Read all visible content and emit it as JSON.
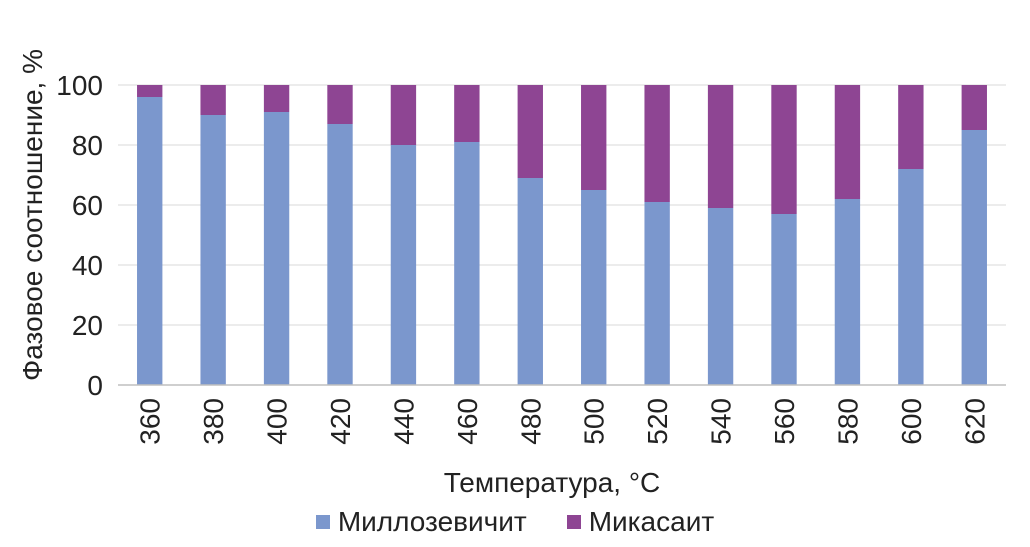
{
  "chart_data": {
    "type": "bar",
    "stacked": true,
    "categories": [
      "360",
      "380",
      "400",
      "420",
      "440",
      "460",
      "480",
      "500",
      "520",
      "540",
      "560",
      "580",
      "600",
      "620"
    ],
    "series": [
      {
        "name": "Миллозевичит",
        "color": "#7b97cd",
        "values": [
          96,
          90,
          91,
          87,
          80,
          81,
          69,
          65,
          61,
          59,
          57,
          62,
          72,
          85
        ]
      },
      {
        "name": "Микасаит",
        "color": "#8e4593",
        "values": [
          4,
          10,
          9,
          13,
          20,
          19,
          31,
          35,
          39,
          41,
          43,
          38,
          28,
          15
        ]
      }
    ],
    "xlabel": "Температура, °С",
    "ylabel": "Фазовое соотношение, %",
    "ylim": [
      0,
      100
    ],
    "yticks": [
      "0",
      "20",
      "40",
      "60",
      "80",
      "100"
    ],
    "grid": true,
    "legend_position": "bottom"
  }
}
